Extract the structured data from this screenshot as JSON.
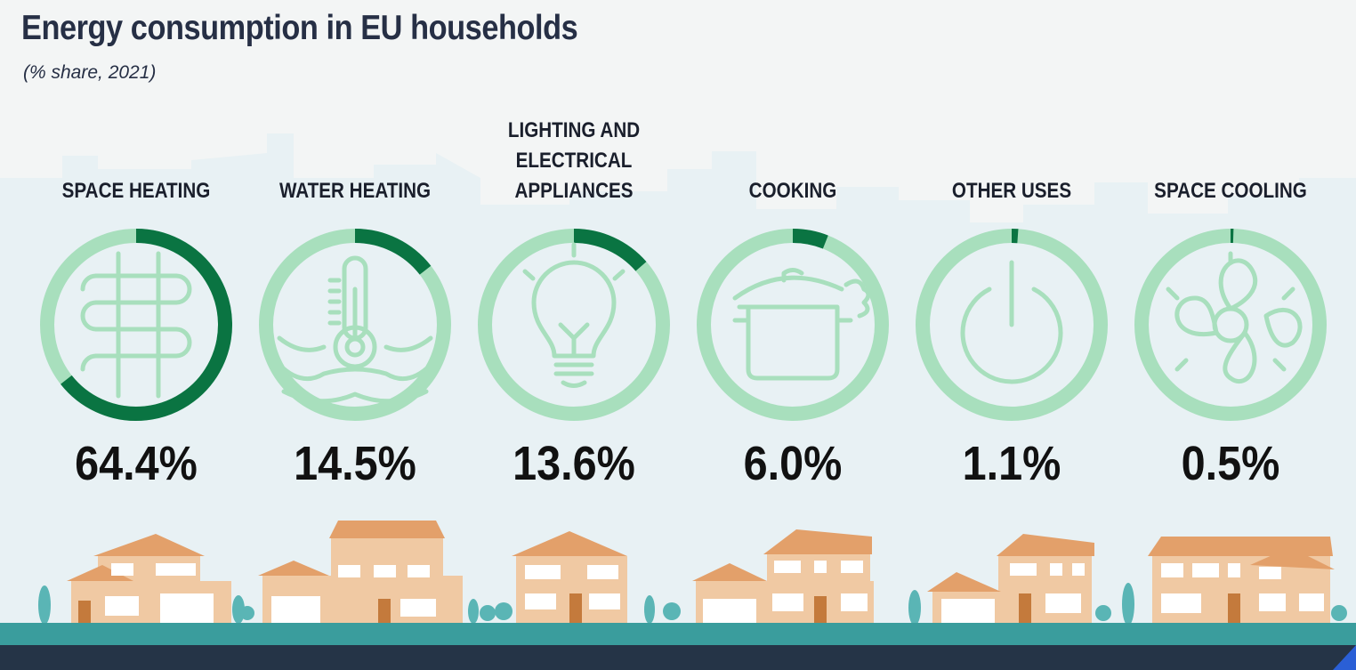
{
  "chart_data": {
    "type": "donut",
    "title": "Energy consumption in EU households",
    "subtitle": "(% share, 2021)",
    "categories": [
      {
        "label": [
          "SPACE HEATING"
        ],
        "value": 64.4,
        "display": "64.4%",
        "icon": "radiator-icon"
      },
      {
        "label": [
          "WATER HEATING"
        ],
        "value": 14.5,
        "display": "14.5%",
        "icon": "thermometer-icon"
      },
      {
        "label": [
          "LIGHTING AND",
          "ELECTRICAL",
          "APPLIANCES"
        ],
        "value": 13.6,
        "display": "13.6%",
        "icon": "lightbulb-icon"
      },
      {
        "label": [
          "COOKING"
        ],
        "value": 6.0,
        "display": "6.0%",
        "icon": "cooking-pot-icon"
      },
      {
        "label": [
          "OTHER USES"
        ],
        "value": 1.1,
        "display": "1.1%",
        "icon": "power-icon"
      },
      {
        "label": [
          "SPACE COOLING"
        ],
        "value": 0.5,
        "display": "0.5%",
        "icon": "fan-icon"
      }
    ],
    "unit": "%",
    "colors": {
      "ring_track": "#a8dfbd",
      "ring_value": "#0a7442",
      "icon_stroke": "#a8dfbd",
      "text": "#1a1f2c"
    }
  }
}
